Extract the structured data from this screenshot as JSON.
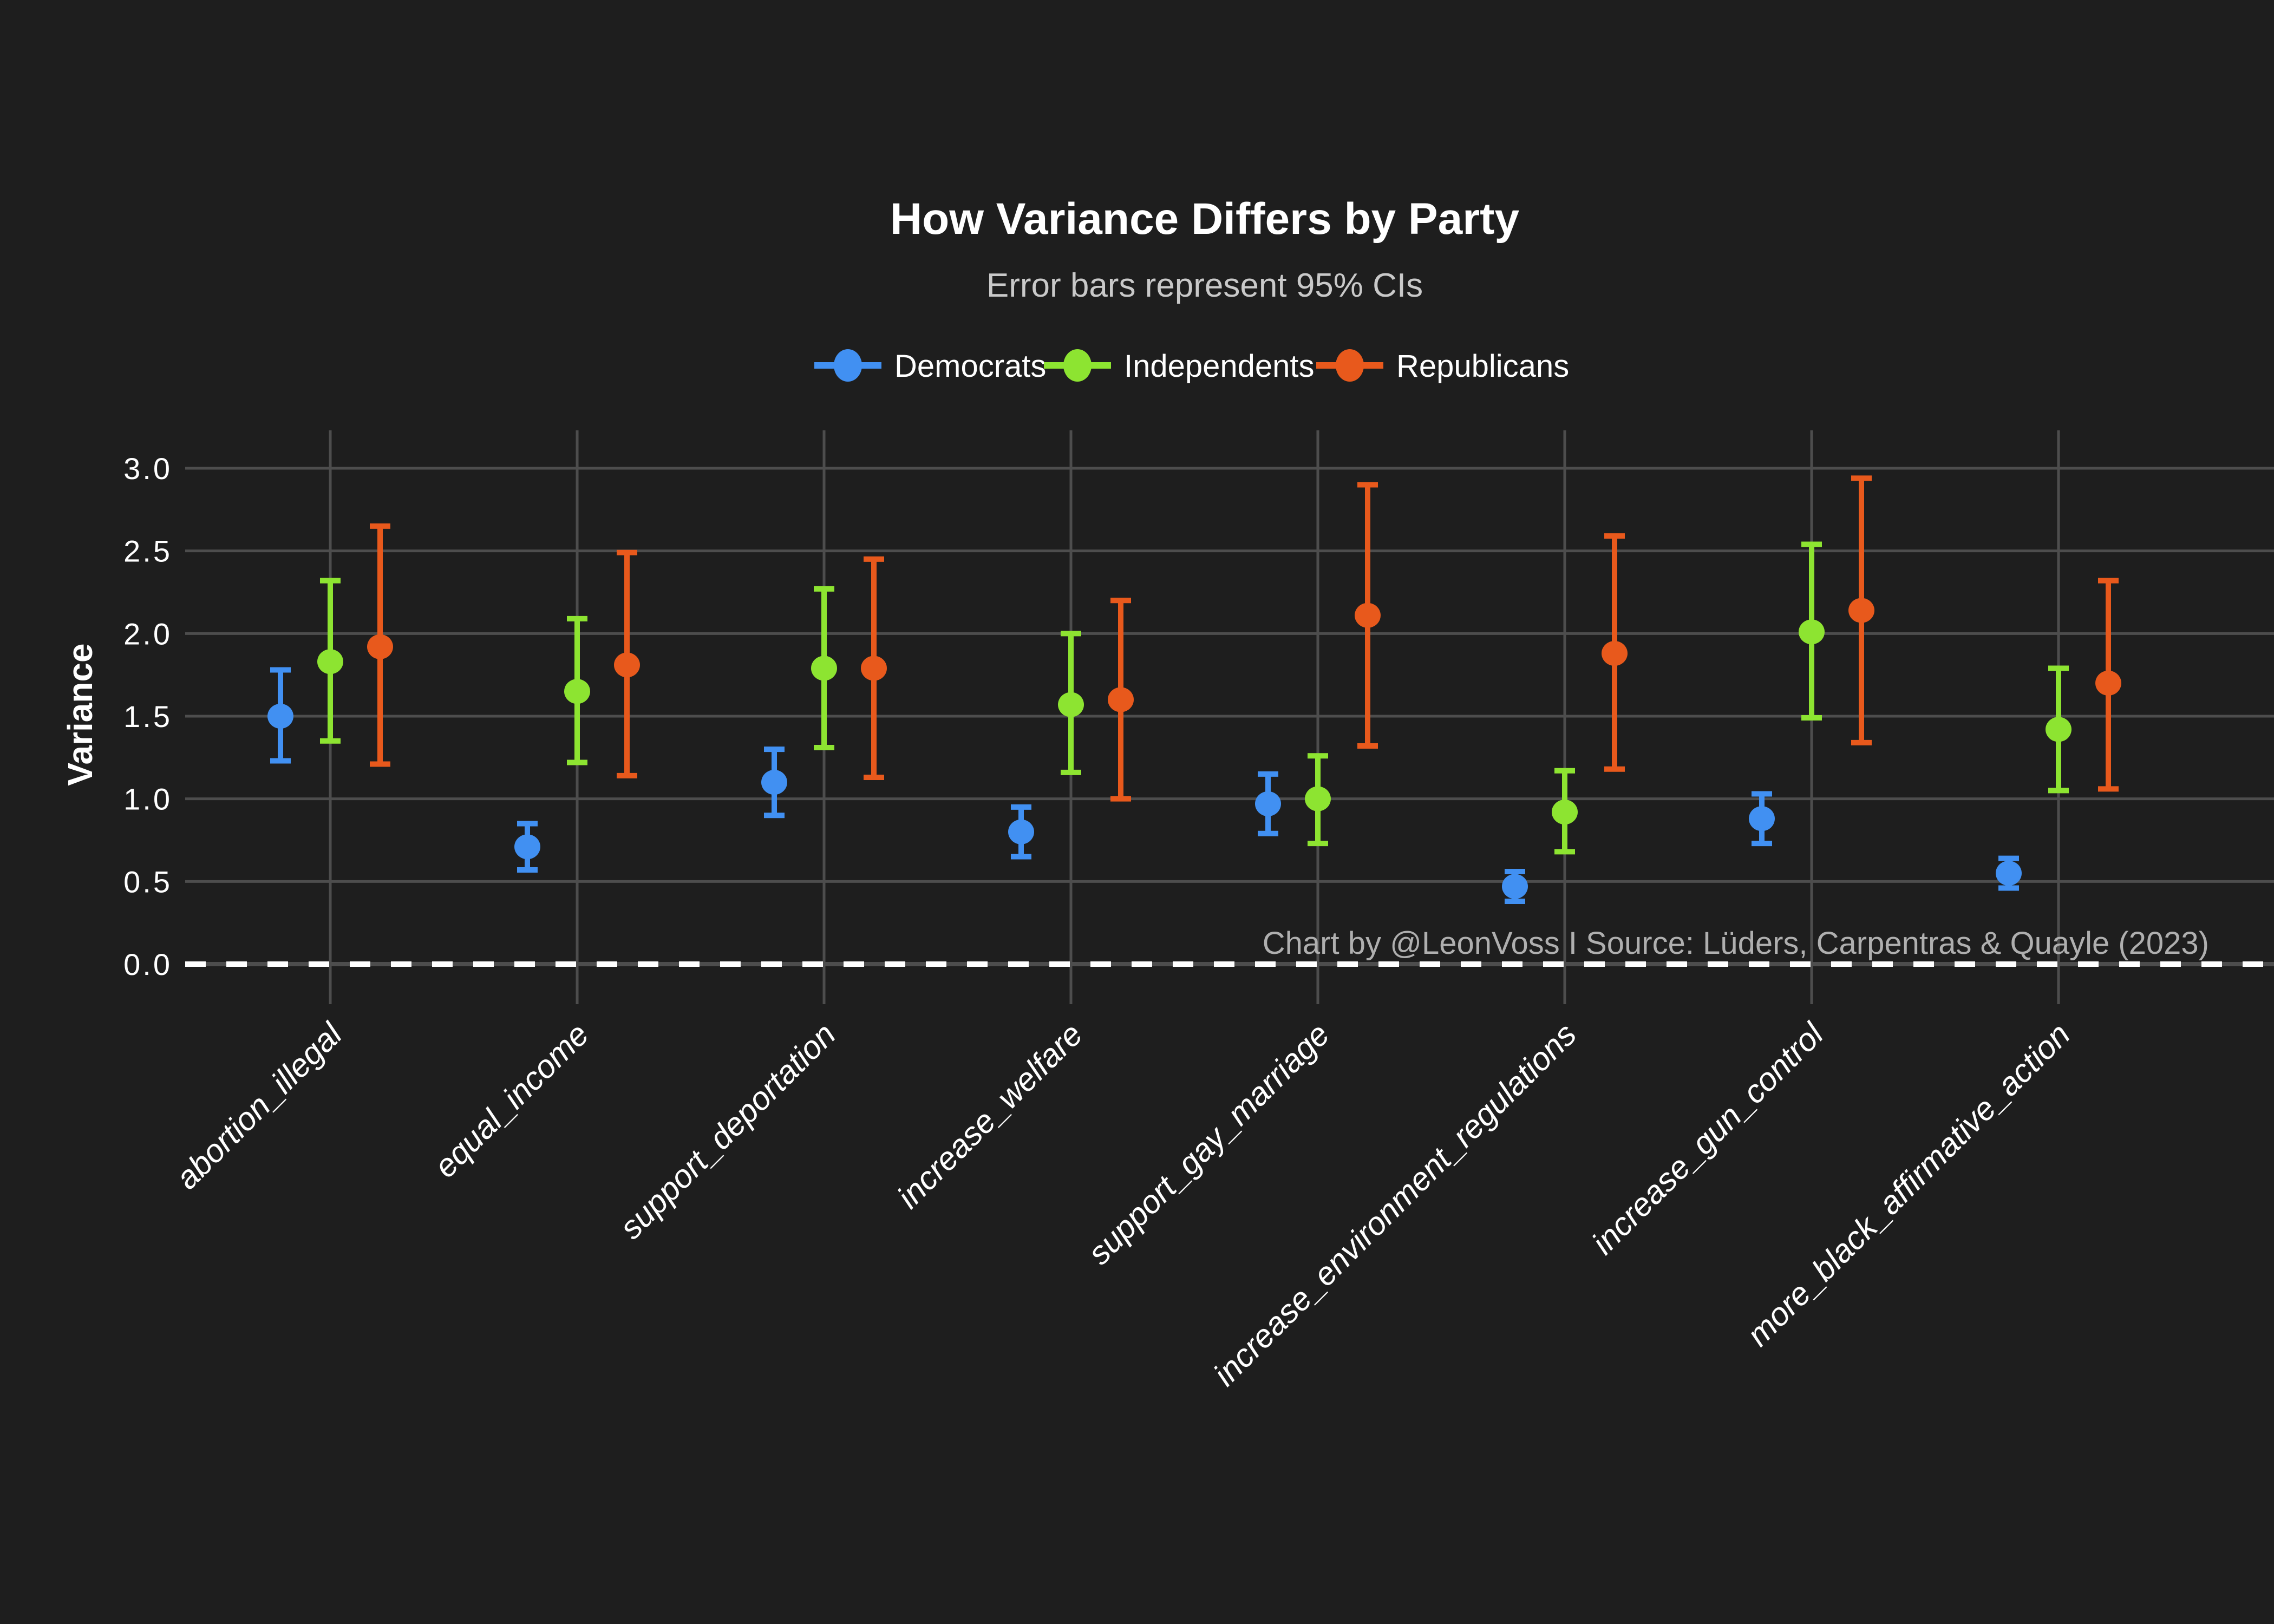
{
  "chart_data": {
    "type": "scatter",
    "subtype": "dot-and-errorbar",
    "title": "How Variance Differs by Party",
    "subtitle": "Error bars represent 95% CIs",
    "ylabel": "Variance",
    "xlabel": "",
    "watermark": "Chart by @LeonVoss I Source: Lüders, Carpentras & Quayle (2023)",
    "grid": true,
    "legend_position": "top-center",
    "background_color": "#1E1E1E",
    "gridline_color": "#4D4D4D",
    "zero_line": {
      "value": 0.0,
      "style": "dashed",
      "color": "#FFFFFF"
    },
    "ylim": [
      0.0,
      3.0
    ],
    "y_ticks": [
      {
        "value": 0.0,
        "label": "0.0"
      },
      {
        "value": 0.5,
        "label": "0.5"
      },
      {
        "value": 1.0,
        "label": "1.0"
      },
      {
        "value": 1.5,
        "label": "1.5"
      },
      {
        "value": 2.0,
        "label": "2.0"
      },
      {
        "value": 2.5,
        "label": "2.5"
      },
      {
        "value": 3.0,
        "label": "3.0"
      }
    ],
    "categories": [
      "abortion_illegal",
      "equal_income",
      "support_deportation",
      "increase_welfare",
      "support_gay_marriage",
      "increase_environment_regulations",
      "increase_gun_control",
      "more_black_affirmative_action"
    ],
    "series": [
      {
        "name": "Democrats",
        "color": "#4190F2",
        "values": [
          1.5,
          0.71,
          1.1,
          0.8,
          0.97,
          0.47,
          0.88,
          0.55
        ],
        "ci_low": [
          1.23,
          0.57,
          0.9,
          0.65,
          0.79,
          0.38,
          0.73,
          0.46
        ],
        "ci_high": [
          1.78,
          0.85,
          1.3,
          0.95,
          1.15,
          0.56,
          1.03,
          0.64
        ]
      },
      {
        "name": "Independents",
        "color": "#8DE431",
        "values": [
          1.83,
          1.65,
          1.79,
          1.57,
          1.0,
          0.92,
          2.01,
          1.42
        ],
        "ci_low": [
          1.35,
          1.22,
          1.31,
          1.16,
          0.73,
          0.68,
          1.49,
          1.05
        ],
        "ci_high": [
          2.32,
          2.09,
          2.27,
          2.0,
          1.26,
          1.17,
          2.54,
          1.79
        ]
      },
      {
        "name": "Republicans",
        "color": "#E8591C",
        "values": [
          1.92,
          1.81,
          1.79,
          1.6,
          2.11,
          1.88,
          2.14,
          1.7
        ],
        "ci_low": [
          1.21,
          1.14,
          1.13,
          1.0,
          1.32,
          1.18,
          1.34,
          1.06
        ],
        "ci_high": [
          2.65,
          2.49,
          2.45,
          2.2,
          2.9,
          2.59,
          2.94,
          2.32
        ]
      }
    ]
  }
}
